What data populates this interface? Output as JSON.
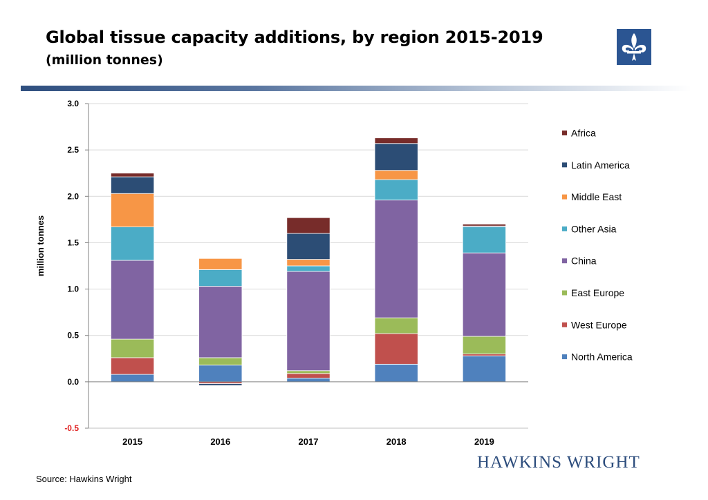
{
  "header": {
    "title": "Global tissue capacity additions, by region 2015-2019",
    "subtitle": "(million tonnes)"
  },
  "footer": {
    "source": "Source: Hawkins Wright",
    "brand": "HAWKINS WRIGHT"
  },
  "logo": {
    "icon": "fleur-de-lis-icon",
    "color": "#2b5592"
  },
  "chart_data": {
    "type": "bar",
    "stacked": true,
    "title": "",
    "xlabel": "",
    "ylabel": "million tonnes",
    "ylim": [
      -0.5,
      3.0
    ],
    "yticks": [
      {
        "value": 3.0,
        "label": "3.0"
      },
      {
        "value": 2.5,
        "label": "2.5"
      },
      {
        "value": 2.0,
        "label": "2.0"
      },
      {
        "value": 1.5,
        "label": "1.5"
      },
      {
        "value": 1.0,
        "label": "1.0"
      },
      {
        "value": 0.5,
        "label": "0.5"
      },
      {
        "value": 0.0,
        "label": "0.0"
      },
      {
        "value": -0.5,
        "label": "-0.5"
      }
    ],
    "negative_tick_color": "#e02020",
    "grid": true,
    "legend_position": "right",
    "categories": [
      "2015",
      "2016",
      "2017",
      "2018",
      "2019"
    ],
    "series": [
      {
        "name": "North America",
        "color": "#4f81bd",
        "values": [
          0.08,
          0.18,
          0.04,
          0.19,
          0.28
        ]
      },
      {
        "name": "West Europe",
        "color": "#c0504d",
        "values": [
          0.18,
          -0.02,
          0.05,
          0.33,
          0.02
        ]
      },
      {
        "name": "East Europe",
        "color": "#9bbb59",
        "values": [
          0.2,
          0.08,
          0.03,
          0.17,
          0.19
        ]
      },
      {
        "name": "China",
        "color": "#8064a2",
        "values": [
          0.85,
          0.77,
          1.07,
          1.27,
          0.9
        ]
      },
      {
        "name": "Other Asia",
        "color": "#4bacc6",
        "values": [
          0.36,
          0.18,
          0.06,
          0.22,
          0.28
        ]
      },
      {
        "name": "Middle East",
        "color": "#f79646",
        "values": [
          0.36,
          0.12,
          0.07,
          0.1,
          0.0
        ]
      },
      {
        "name": "Latin America",
        "color": "#2c4d75",
        "values": [
          0.18,
          -0.02,
          0.28,
          0.29,
          0.01
        ]
      },
      {
        "name": "Africa",
        "color": "#772c2a",
        "values": [
          0.04,
          0.0,
          0.17,
          0.06,
          0.02
        ]
      }
    ]
  }
}
